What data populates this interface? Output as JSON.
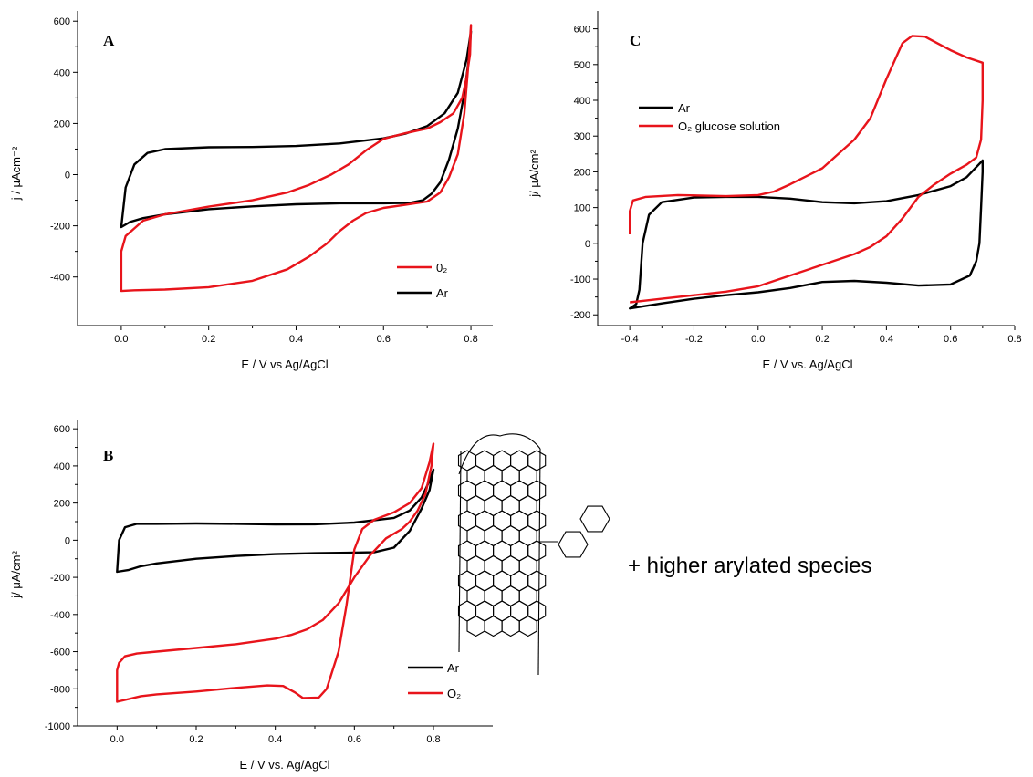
{
  "chart_data": [
    {
      "id": "A",
      "type": "line",
      "panel_label": "A",
      "xlabel": "E / V vs Ag/AgCl",
      "ylabel": "j / μAcm⁻²",
      "xlim": [
        -0.1,
        0.85
      ],
      "ylim": [
        -590,
        640
      ],
      "x_ticks": [
        0.0,
        0.2,
        0.4,
        0.6,
        0.8
      ],
      "x_tick_labels": [
        "0.0",
        "0.2",
        "0.4",
        "0.6",
        "0.8"
      ],
      "y_ticks": [
        -400,
        -200,
        0,
        200,
        400,
        600
      ],
      "y_tick_labels": [
        "-400",
        "-200",
        "0",
        "200",
        "400",
        "600"
      ],
      "legend": {
        "position": "bottom-right",
        "entries": [
          {
            "label": "0₂",
            "color": "#e8141b"
          },
          {
            "label": "Ar",
            "color": "#000000"
          }
        ]
      },
      "series": [
        {
          "name": "Ar",
          "color": "#000000",
          "closed": true,
          "points": [
            [
              0.0,
              -205
            ],
            [
              0.01,
              -50
            ],
            [
              0.03,
              40
            ],
            [
              0.06,
              85
            ],
            [
              0.1,
              100
            ],
            [
              0.2,
              107
            ],
            [
              0.3,
              108
            ],
            [
              0.4,
              112
            ],
            [
              0.5,
              122
            ],
            [
              0.6,
              142
            ],
            [
              0.65,
              160
            ],
            [
              0.7,
              190
            ],
            [
              0.74,
              240
            ],
            [
              0.77,
              320
            ],
            [
              0.79,
              450
            ],
            [
              0.8,
              560
            ],
            [
              0.795,
              450
            ],
            [
              0.785,
              320
            ],
            [
              0.77,
              180
            ],
            [
              0.75,
              60
            ],
            [
              0.73,
              -30
            ],
            [
              0.71,
              -75
            ],
            [
              0.69,
              -100
            ],
            [
              0.66,
              -110
            ],
            [
              0.6,
              -112
            ],
            [
              0.5,
              -112
            ],
            [
              0.4,
              -116
            ],
            [
              0.3,
              -124
            ],
            [
              0.2,
              -135
            ],
            [
              0.1,
              -155
            ],
            [
              0.05,
              -170
            ],
            [
              0.02,
              -185
            ],
            [
              0.0,
              -205
            ]
          ]
        },
        {
          "name": "0₂",
          "color": "#e8141b",
          "closed": true,
          "points": [
            [
              0.0,
              -455
            ],
            [
              0.03,
              -452
            ],
            [
              0.1,
              -449
            ],
            [
              0.2,
              -440
            ],
            [
              0.3,
              -415
            ],
            [
              0.38,
              -370
            ],
            [
              0.43,
              -320
            ],
            [
              0.47,
              -270
            ],
            [
              0.5,
              -220
            ],
            [
              0.53,
              -180
            ],
            [
              0.56,
              -150
            ],
            [
              0.6,
              -130
            ],
            [
              0.65,
              -118
            ],
            [
              0.7,
              -105
            ],
            [
              0.73,
              -70
            ],
            [
              0.75,
              -10
            ],
            [
              0.77,
              80
            ],
            [
              0.785,
              240
            ],
            [
              0.795,
              450
            ],
            [
              0.8,
              585
            ],
            [
              0.798,
              470
            ],
            [
              0.79,
              380
            ],
            [
              0.78,
              300
            ],
            [
              0.76,
              240
            ],
            [
              0.73,
              205
            ],
            [
              0.7,
              180
            ],
            [
              0.65,
              162
            ],
            [
              0.6,
              140
            ],
            [
              0.56,
              95
            ],
            [
              0.52,
              40
            ],
            [
              0.48,
              0
            ],
            [
              0.43,
              -40
            ],
            [
              0.38,
              -70
            ],
            [
              0.3,
              -100
            ],
            [
              0.2,
              -125
            ],
            [
              0.1,
              -155
            ],
            [
              0.05,
              -180
            ],
            [
              0.03,
              -210
            ],
            [
              0.01,
              -240
            ],
            [
              0.0,
              -300
            ],
            [
              0.0,
              -455
            ]
          ]
        }
      ]
    },
    {
      "id": "B",
      "type": "line",
      "panel_label": "B",
      "xlabel": "E / V vs. Ag/AgCl",
      "ylabel": "j/ μA/cm²",
      "xlim": [
        -0.1,
        0.95
      ],
      "ylim": [
        -1000,
        650
      ],
      "x_ticks": [
        0.0,
        0.2,
        0.4,
        0.6,
        0.8
      ],
      "x_tick_labels": [
        "0.0",
        "0.2",
        "0.4",
        "0.6",
        "0.8"
      ],
      "y_ticks": [
        -1000,
        -800,
        -600,
        -400,
        -200,
        0,
        200,
        400,
        600
      ],
      "y_tick_labels": [
        "-1000",
        "-800",
        "-600",
        "-400",
        "-200",
        "0",
        "200",
        "400",
        "600"
      ],
      "legend": {
        "position": "bottom-right",
        "entries": [
          {
            "label": "Ar",
            "color": "#000000"
          },
          {
            "label": "O₂",
            "color": "#e8141b"
          }
        ]
      },
      "annotation": "+ higher arylated species",
      "series": [
        {
          "name": "Ar",
          "color": "#000000",
          "closed": true,
          "points": [
            [
              0.0,
              -170
            ],
            [
              0.005,
              0
            ],
            [
              0.02,
              70
            ],
            [
              0.05,
              88
            ],
            [
              0.1,
              88
            ],
            [
              0.2,
              90
            ],
            [
              0.3,
              88
            ],
            [
              0.4,
              85
            ],
            [
              0.5,
              86
            ],
            [
              0.6,
              95
            ],
            [
              0.7,
              120
            ],
            [
              0.74,
              160
            ],
            [
              0.77,
              230
            ],
            [
              0.79,
              320
            ],
            [
              0.8,
              380
            ],
            [
              0.79,
              270
            ],
            [
              0.77,
              170
            ],
            [
              0.74,
              50
            ],
            [
              0.7,
              -40
            ],
            [
              0.65,
              -65
            ],
            [
              0.5,
              -70
            ],
            [
              0.4,
              -75
            ],
            [
              0.3,
              -85
            ],
            [
              0.2,
              -100
            ],
            [
              0.1,
              -125
            ],
            [
              0.06,
              -140
            ],
            [
              0.03,
              -160
            ],
            [
              0.0,
              -170
            ]
          ]
        },
        {
          "name": "O₂",
          "color": "#e8141b",
          "closed": true,
          "points": [
            [
              0.0,
              -870
            ],
            [
              0.02,
              -860
            ],
            [
              0.06,
              -840
            ],
            [
              0.1,
              -830
            ],
            [
              0.2,
              -815
            ],
            [
              0.3,
              -795
            ],
            [
              0.38,
              -782
            ],
            [
              0.42,
              -785
            ],
            [
              0.45,
              -820
            ],
            [
              0.47,
              -850
            ],
            [
              0.51,
              -848
            ],
            [
              0.53,
              -800
            ],
            [
              0.56,
              -600
            ],
            [
              0.58,
              -350
            ],
            [
              0.6,
              -50
            ],
            [
              0.62,
              60
            ],
            [
              0.65,
              110
            ],
            [
              0.7,
              150
            ],
            [
              0.74,
              200
            ],
            [
              0.77,
              280
            ],
            [
              0.79,
              420
            ],
            [
              0.8,
              520
            ],
            [
              0.795,
              400
            ],
            [
              0.78,
              250
            ],
            [
              0.76,
              160
            ],
            [
              0.74,
              100
            ],
            [
              0.72,
              60
            ],
            [
              0.68,
              10
            ],
            [
              0.64,
              -80
            ],
            [
              0.6,
              -200
            ],
            [
              0.56,
              -340
            ],
            [
              0.52,
              -430
            ],
            [
              0.48,
              -480
            ],
            [
              0.44,
              -510
            ],
            [
              0.4,
              -530
            ],
            [
              0.3,
              -560
            ],
            [
              0.2,
              -580
            ],
            [
              0.1,
              -600
            ],
            [
              0.05,
              -610
            ],
            [
              0.02,
              -625
            ],
            [
              0.005,
              -660
            ],
            [
              0.0,
              -700
            ],
            [
              0.0,
              -870
            ]
          ]
        }
      ]
    },
    {
      "id": "C",
      "type": "line",
      "panel_label": "C",
      "xlabel": "E / V vs. Ag/AgCl",
      "ylabel": "j/ μA/cm²",
      "xlim": [
        -0.5,
        0.8
      ],
      "ylim": [
        -230,
        650
      ],
      "x_ticks": [
        -0.4,
        -0.2,
        0.0,
        0.2,
        0.4,
        0.6,
        0.8
      ],
      "x_tick_labels": [
        "-0.4",
        "-0.2",
        "0.0",
        "0.2",
        "0.4",
        "0.6",
        "0.8"
      ],
      "y_ticks": [
        -200,
        -100,
        0,
        100,
        200,
        300,
        400,
        500,
        600
      ],
      "y_tick_labels": [
        "-200",
        "-100",
        "0",
        "100",
        "200",
        "300",
        "400",
        "500",
        "600"
      ],
      "legend": {
        "position": "top-left",
        "entries": [
          {
            "label": "Ar",
            "color": "#000000"
          },
          {
            "label": "O₂ glucose solution",
            "color": "#e8141b"
          }
        ]
      },
      "series": [
        {
          "name": "Ar",
          "color": "#000000",
          "closed": true,
          "points": [
            [
              -0.4,
              -182
            ],
            [
              -0.38,
              -170
            ],
            [
              -0.37,
              -130
            ],
            [
              -0.36,
              0
            ],
            [
              -0.34,
              80
            ],
            [
              -0.3,
              115
            ],
            [
              -0.2,
              128
            ],
            [
              -0.1,
              130
            ],
            [
              0.0,
              130
            ],
            [
              0.1,
              125
            ],
            [
              0.2,
              115
            ],
            [
              0.3,
              112
            ],
            [
              0.4,
              118
            ],
            [
              0.5,
              135
            ],
            [
              0.6,
              160
            ],
            [
              0.65,
              185
            ],
            [
              0.7,
              232
            ],
            [
              0.7,
              200
            ],
            [
              0.695,
              100
            ],
            [
              0.69,
              0
            ],
            [
              0.68,
              -50
            ],
            [
              0.66,
              -90
            ],
            [
              0.6,
              -115
            ],
            [
              0.5,
              -118
            ],
            [
              0.4,
              -110
            ],
            [
              0.3,
              -105
            ],
            [
              0.2,
              -108
            ],
            [
              0.1,
              -125
            ],
            [
              0.0,
              -137
            ],
            [
              -0.1,
              -145
            ],
            [
              -0.2,
              -155
            ],
            [
              -0.3,
              -168
            ],
            [
              -0.4,
              -182
            ]
          ]
        },
        {
          "name": "O₂ glucose solution",
          "color": "#e8141b",
          "closed": false,
          "points": [
            [
              -0.4,
              25
            ],
            [
              -0.4,
              90
            ],
            [
              -0.39,
              120
            ],
            [
              -0.35,
              130
            ],
            [
              -0.25,
              135
            ],
            [
              -0.1,
              132
            ],
            [
              0.0,
              135
            ],
            [
              0.05,
              145
            ],
            [
              0.1,
              165
            ],
            [
              0.2,
              210
            ],
            [
              0.3,
              290
            ],
            [
              0.35,
              350
            ],
            [
              0.4,
              460
            ],
            [
              0.45,
              560
            ],
            [
              0.48,
              580
            ],
            [
              0.52,
              578
            ],
            [
              0.6,
              540
            ],
            [
              0.65,
              520
            ],
            [
              0.7,
              505
            ],
            [
              0.7,
              400
            ],
            [
              0.695,
              290
            ],
            [
              0.68,
              240
            ],
            [
              0.65,
              220
            ],
            [
              0.6,
              195
            ],
            [
              0.55,
              165
            ],
            [
              0.5,
              130
            ],
            [
              0.45,
              70
            ],
            [
              0.4,
              20
            ],
            [
              0.35,
              -10
            ],
            [
              0.3,
              -30
            ],
            [
              0.2,
              -60
            ],
            [
              0.1,
              -90
            ],
            [
              0.0,
              -120
            ],
            [
              -0.1,
              -135
            ],
            [
              -0.2,
              -145
            ],
            [
              -0.3,
              -155
            ],
            [
              -0.35,
              -160
            ],
            [
              -0.4,
              -165
            ]
          ]
        }
      ]
    }
  ]
}
